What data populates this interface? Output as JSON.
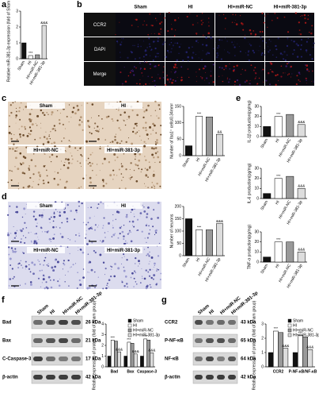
{
  "panel_labels": [
    "a",
    "b",
    "c",
    "d",
    "e",
    "f",
    "g"
  ],
  "panel_b": {
    "columns": [
      "Sham",
      "HI",
      "HI+miR-NC",
      "HI+miR-381-3p"
    ],
    "rows": [
      "CCR2",
      "DAPI",
      "Merge"
    ]
  },
  "panel_c_images": {
    "labels": [
      "Sham",
      "HI",
      "HI+miR-NC",
      "HI+miR-381-3p"
    ]
  },
  "panel_d_images": {
    "labels": [
      "Sham",
      "HI",
      "HI+miR-NC",
      "HI+miR-381-3p"
    ]
  },
  "panel_f_blot": {
    "columns": [
      "Sham",
      "HI",
      "HI+miR-NC",
      "HI+miR-381-3p"
    ],
    "rows": [
      {
        "name": "Bad",
        "size": "26 kDa"
      },
      {
        "name": "Bax",
        "size": "21 kDa"
      },
      {
        "name": "C-Caspase-3",
        "size": "17 kDa"
      },
      {
        "name": "β-actin",
        "size": "42 kDa"
      }
    ]
  },
  "panel_g_blot": {
    "columns": [
      "Sham",
      "HI",
      "HI+miR-NC",
      "HI+miR-381-3p"
    ],
    "rows": [
      {
        "name": "CCR2",
        "size": "43 kDa"
      },
      {
        "name": "P-NF-κB",
        "size": "65 kDa"
      },
      {
        "name": "NF-κB",
        "size": "64 kDa"
      },
      {
        "name": "β-actin",
        "size": "42 kDa"
      }
    ]
  },
  "chart_data": [
    {
      "type": "bar",
      "ylabel": "Relative miR-381-3p expression (fold of Sham group)",
      "categories": [
        "Sham",
        "HI",
        "HI+miR-NC",
        "HI+miR-381-3p"
      ],
      "values": [
        1.0,
        0.2,
        0.25,
        2.1
      ],
      "colors": [
        "#111111",
        "#ffffff",
        "#999999",
        "#dddddd"
      ],
      "annotations": [
        null,
        "***",
        null,
        "&&&"
      ],
      "ylim": [
        0,
        3
      ],
      "yticks": [
        0,
        1,
        2,
        3
      ]
    },
    {
      "type": "bar",
      "ylabel": "Number of Iba1⁺ cells/0.34mm²",
      "categories": [
        "Sham",
        "HI",
        "HI+miR-NC",
        "HI+miR-381-3p"
      ],
      "values": [
        30,
        120,
        118,
        65
      ],
      "colors": [
        "#111111",
        "#ffffff",
        "#999999",
        "#dddddd"
      ],
      "annotations": [
        null,
        "***",
        null,
        "&&"
      ],
      "ylim": [
        0,
        150
      ],
      "yticks": [
        0,
        50,
        100,
        150
      ]
    },
    {
      "type": "bar",
      "ylabel": "Number of neurons",
      "categories": [
        "Sham",
        "HI",
        "HI+miR-NC",
        "HI+miR-381-3p"
      ],
      "values": [
        150,
        105,
        105,
        130
      ],
      "colors": [
        "#111111",
        "#ffffff",
        "#999999",
        "#dddddd"
      ],
      "annotations": [
        null,
        "***",
        null,
        "&&&"
      ],
      "ylim": [
        0,
        200
      ],
      "yticks": [
        0,
        50,
        100,
        150,
        200
      ]
    },
    {
      "type": "bar",
      "ylabel": "IL-1β production(pg/mg)",
      "categories": [
        "Sham",
        "HI",
        "HI+miR-NC",
        "HI+miR-381-3p"
      ],
      "values": [
        10,
        20,
        22,
        12
      ],
      "colors": [
        "#111111",
        "#ffffff",
        "#999999",
        "#dddddd"
      ],
      "annotations": [
        null,
        "***",
        null,
        "&&&"
      ],
      "ylim": [
        0,
        30
      ],
      "yticks": [
        0,
        10,
        20,
        30
      ]
    },
    {
      "type": "bar",
      "ylabel": "IL-6 production(pg/mg)",
      "categories": [
        "Sham",
        "HI",
        "HI+miR-NC",
        "HI+miR-381-3p"
      ],
      "values": [
        5,
        20,
        22,
        10
      ],
      "colors": [
        "#111111",
        "#ffffff",
        "#999999",
        "#dddddd"
      ],
      "annotations": [
        null,
        "***",
        null,
        "&&&"
      ],
      "ylim": [
        0,
        30
      ],
      "yticks": [
        0,
        10,
        20,
        30
      ]
    },
    {
      "type": "bar",
      "ylabel": "TNF-α production(pg/mg)",
      "categories": [
        "Sham",
        "HI",
        "HI+miR-NC",
        "HI+miR-381-3p"
      ],
      "values": [
        5,
        20,
        20,
        10
      ],
      "colors": [
        "#111111",
        "#ffffff",
        "#999999",
        "#dddddd"
      ],
      "annotations": [
        null,
        "***",
        null,
        "&&&"
      ],
      "ylim": [
        0,
        30
      ],
      "yticks": [
        0,
        10,
        20,
        30
      ]
    },
    {
      "type": "bar",
      "ylabel": "Relative expression of protein (fold of Sham group)",
      "categories": [
        "Bad",
        "Bax",
        "Caspase-3"
      ],
      "series": [
        {
          "name": "Sham",
          "color": "#111111",
          "values": [
            1,
            1,
            1
          ]
        },
        {
          "name": "HI",
          "color": "#ffffff",
          "values": [
            2.5,
            2.3,
            2.6
          ],
          "annotations": [
            "***",
            "***",
            "***"
          ]
        },
        {
          "name": "HI+miR-NC",
          "color": "#999999",
          "values": [
            2.4,
            2.2,
            2.5
          ]
        },
        {
          "name": "HI+miR-381-3p",
          "color": "#dddddd",
          "values": [
            1.4,
            1.2,
            1.3
          ],
          "annotations": [
            "&&&",
            "&&&",
            "&&&"
          ]
        }
      ],
      "ylim": [
        0,
        4
      ],
      "yticks": [
        0,
        1,
        2,
        3,
        4
      ]
    },
    {
      "type": "bar",
      "ylabel": "Relative expression of protein (fold of Sham group)",
      "categories": [
        "CCR2",
        "P-NF-κB/NF-κB"
      ],
      "series": [
        {
          "name": "Sham",
          "color": "#111111",
          "values": [
            1,
            1
          ]
        },
        {
          "name": "HI",
          "color": "#ffffff",
          "values": [
            2.5,
            2.2
          ],
          "annotations": [
            "***",
            "***"
          ]
        },
        {
          "name": "HI+miR-NC",
          "color": "#999999",
          "values": [
            2.4,
            2.1
          ]
        },
        {
          "name": "HI+miR-381-3p",
          "color": "#dddddd",
          "values": [
            1.3,
            1.2
          ],
          "annotations": [
            "&&&",
            "&&&"
          ]
        }
      ],
      "ylim": [
        0,
        3
      ],
      "yticks": [
        0,
        1,
        2,
        3
      ]
    }
  ]
}
